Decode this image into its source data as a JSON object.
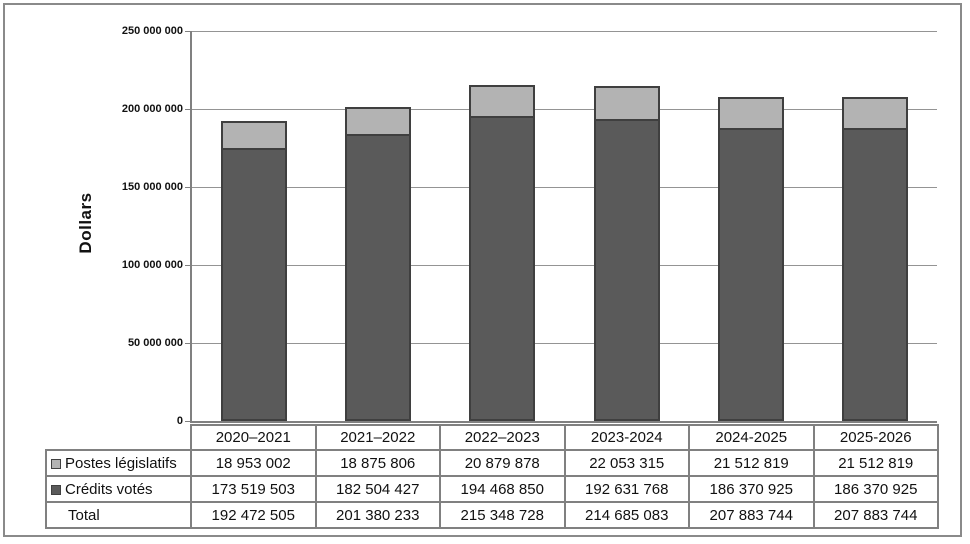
{
  "chart_data": {
    "type": "bar",
    "stacked": true,
    "title": "",
    "xlabel": "",
    "ylabel": "Dollars",
    "categories": [
      "2020–2021",
      "2021–2022",
      "2022–2023",
      "2023-2024",
      "2024-2025",
      "2025-2026"
    ],
    "series": [
      {
        "name": "Postes législatifs",
        "color": "#b3b3b3",
        "values": [
          18953002,
          18875806,
          20879878,
          22053315,
          21512819,
          21512819
        ],
        "values_formatted": [
          "18 953 002",
          "18 875 806",
          "20 879 878",
          "22 053 315",
          "21 512 819",
          "21 512 819"
        ]
      },
      {
        "name": "Crédits votés",
        "color": "#5a5a5a",
        "values": [
          173519503,
          182504427,
          194468850,
          192631768,
          186370925,
          186370925
        ],
        "values_formatted": [
          "173 519 503",
          "182 504 427",
          "194 468 850",
          "192 631 768",
          "186 370 925",
          "186 370 925"
        ]
      }
    ],
    "totals": {
      "label": "Total",
      "values": [
        192472505,
        201380233,
        215348728,
        214685083,
        207883744,
        207883744
      ],
      "values_formatted": [
        "192 472 505",
        "201 380 233",
        "215 348 728",
        "214 685 083",
        "207 883 744",
        "207 883 744"
      ]
    },
    "ylim": [
      0,
      250000000
    ],
    "ytick_interval": 50000000,
    "yticks": [
      {
        "value": 0,
        "label": "0"
      },
      {
        "value": 50000000,
        "label": "50 000 000"
      },
      {
        "value": 100000000,
        "label": "100 000 000"
      },
      {
        "value": 150000000,
        "label": "150 000 000"
      },
      {
        "value": 200000000,
        "label": "200 000 000"
      },
      {
        "value": 250000000,
        "label": "250 000 000"
      }
    ],
    "grid": true,
    "legend_position": "table-left",
    "bar_border_color": "#3f3f3f",
    "gridline_color": "#949494",
    "axis_color": "#808080",
    "frame_border_color": "#8a8a8a"
  }
}
